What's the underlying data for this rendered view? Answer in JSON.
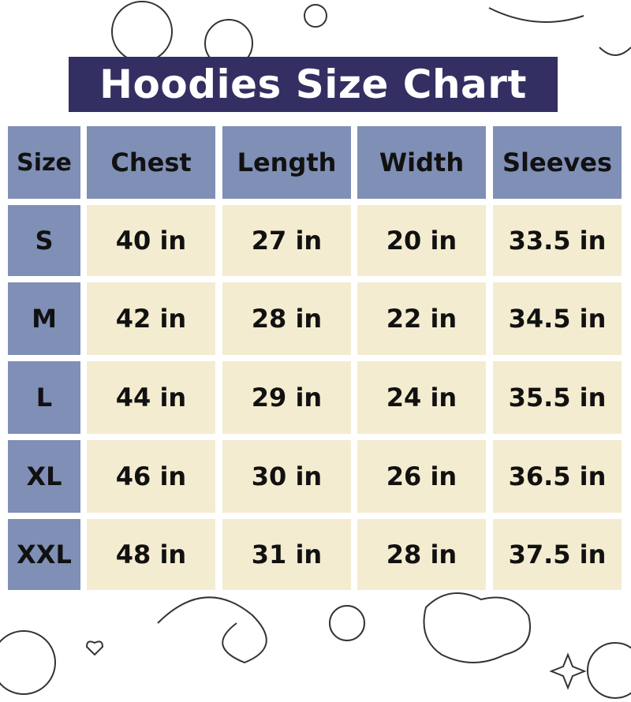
{
  "chart_data": {
    "type": "table",
    "title": "Hoodies Size Chart",
    "columns": [
      "Size",
      "Chest",
      "Length",
      "Width",
      "Sleeves"
    ],
    "rows": [
      [
        "S",
        "40 in",
        "27 in",
        "20 in",
        "33.5 in"
      ],
      [
        "M",
        "42 in",
        "28 in",
        "22 in",
        "34.5 in"
      ],
      [
        "L",
        "44 in",
        "29 in",
        "24 in",
        "35.5 in"
      ],
      [
        "XL",
        "46 in",
        "30 in",
        "26 in",
        "36.5 in"
      ],
      [
        "XXL",
        "48 in",
        "31 in",
        "28 in",
        "37.5 in"
      ]
    ]
  },
  "colors": {
    "title_bg": "#332f63",
    "header_bg": "#7f8fb5",
    "cell_bg": "#f4ecd0",
    "size_bg": "#7f8fb5"
  }
}
